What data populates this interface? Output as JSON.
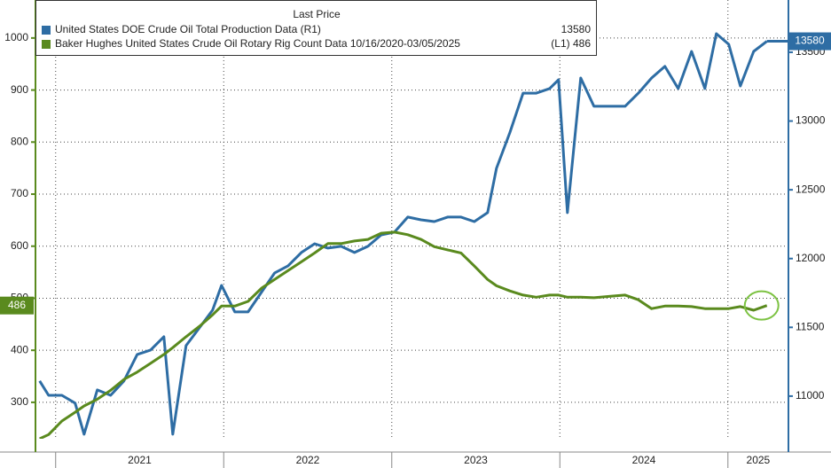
{
  "chart_data": {
    "type": "line",
    "legend_header": "Last Price",
    "x": [
      2020.905,
      2020.958,
      2021.037,
      2021.116,
      2021.169,
      2021.248,
      2021.327,
      2021.406,
      2021.485,
      2021.565,
      2021.644,
      2021.697,
      2021.776,
      2021.855,
      2021.934,
      2021.987,
      2022.066,
      2022.145,
      2022.224,
      2022.303,
      2022.383,
      2022.462,
      2022.541,
      2022.62,
      2022.699,
      2022.778,
      2022.858,
      2022.937,
      2023.016,
      2023.095,
      2023.174,
      2023.253,
      2023.332,
      2023.412,
      2023.491,
      2023.57,
      2023.623,
      2023.702,
      2023.781,
      2023.86,
      2023.939,
      2023.992,
      2024.045,
      2024.124,
      2024.203,
      2024.309,
      2024.388,
      2024.467,
      2024.546,
      2024.625,
      2024.704,
      2024.784,
      2024.863,
      2024.931,
      2025.005,
      2025.074,
      2025.153,
      2025.232
    ],
    "series": [
      {
        "name": "United States DOE Crude Oil Total Production Data  (R1)",
        "last_label": "13580",
        "color": "#2e6da4",
        "axis": "y2",
        "values": [
          11110,
          11006,
          11006,
          10949,
          10723,
          11045,
          11006,
          11110,
          11303,
          11335,
          11432,
          10723,
          11367,
          11496,
          11625,
          11805,
          11612,
          11612,
          11754,
          11896,
          11947,
          12044,
          12108,
          12076,
          12089,
          12044,
          12089,
          12172,
          12192,
          12302,
          12282,
          12269,
          12302,
          12302,
          12269,
          12334,
          12656,
          12914,
          13203,
          13203,
          13236,
          13300,
          12334,
          13313,
          13107,
          13107,
          13107,
          13203,
          13313,
          13397,
          13236,
          13506,
          13236,
          13635,
          13558,
          13255,
          13506,
          13580
        ]
      },
      {
        "name": "Baker Hughes United States Crude Oil Rotary Rig Count Data 10/16/2020-03/05/2025",
        "last_label": "(L1) 486",
        "color": "#5a8a1e",
        "values": [
          230,
          238,
          264,
          281,
          293,
          306,
          323,
          344,
          358,
          375,
          392,
          405,
          426,
          446,
          468,
          485,
          485,
          494,
          519,
          536,
          553,
          570,
          587,
          605,
          605,
          610,
          613,
          625,
          627,
          622,
          613,
          599,
          593,
          587,
          562,
          536,
          524,
          514,
          506,
          502,
          506,
          506,
          502,
          502,
          501,
          504,
          506,
          497,
          480,
          485,
          485,
          484,
          480,
          480,
          480,
          484,
          477,
          486
        ]
      }
    ],
    "categories": [
      "2021",
      "2022",
      "2023",
      "2024",
      "2025"
    ],
    "xticks": [
      2021,
      2022,
      2023,
      2024,
      2025
    ],
    "xlim": [
      2020.88,
      2025.36
    ],
    "ylim": [
      230,
      1073
    ],
    "yticks": [
      300,
      400,
      500,
      600,
      700,
      800,
      900,
      1000
    ],
    "y2lim": [
      10690,
      13880
    ],
    "y2ticks": [
      11000,
      11500,
      12000,
      12500,
      13000,
      13500
    ],
    "grid": true
  }
}
